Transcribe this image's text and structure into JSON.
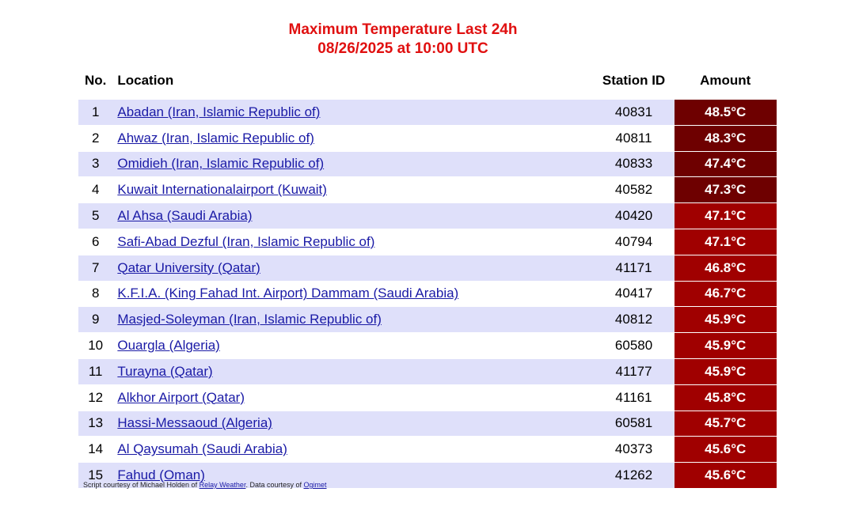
{
  "title": {
    "line1": "Maximum Temperature Last 24h",
    "line2": "08/26/2025 at 10:00 UTC"
  },
  "headers": {
    "no": "No.",
    "location": "Location",
    "station": "Station ID",
    "amount": "Amount"
  },
  "colors": {
    "extreme": "#6e0000",
    "high": "#a00000",
    "stripe": "#dfe0fa",
    "title": "#e01010"
  },
  "rows": [
    {
      "no": "1",
      "location": "Abadan (Iran, Islamic Republic of)",
      "station": "40831",
      "amount": "48.5°C",
      "level": "extreme"
    },
    {
      "no": "2",
      "location": "Ahwaz (Iran, Islamic Republic of)",
      "station": "40811",
      "amount": "48.3°C",
      "level": "extreme"
    },
    {
      "no": "3",
      "location": "Omidieh (Iran, Islamic Republic of)",
      "station": "40833",
      "amount": "47.4°C",
      "level": "extreme"
    },
    {
      "no": "4",
      "location": "Kuwait Internationalairport (Kuwait)",
      "station": "40582",
      "amount": "47.3°C",
      "level": "extreme"
    },
    {
      "no": "5",
      "location": "Al Ahsa (Saudi Arabia)",
      "station": "40420",
      "amount": "47.1°C",
      "level": "high"
    },
    {
      "no": "6",
      "location": "Safi-Abad Dezful (Iran, Islamic Republic of)",
      "station": "40794",
      "amount": "47.1°C",
      "level": "high"
    },
    {
      "no": "7",
      "location": "Qatar University (Qatar)",
      "station": "41171",
      "amount": "46.8°C",
      "level": "high"
    },
    {
      "no": "8",
      "location": "K.F.I.A. (King Fahad Int. Airport) Dammam (Saudi Arabia)",
      "station": "40417",
      "amount": "46.7°C",
      "level": "high"
    },
    {
      "no": "9",
      "location": "Masjed-Soleyman (Iran, Islamic Republic of)",
      "station": "40812",
      "amount": "45.9°C",
      "level": "high"
    },
    {
      "no": "10",
      "location": "Ouargla (Algeria)",
      "station": "60580",
      "amount": "45.9°C",
      "level": "high"
    },
    {
      "no": "11",
      "location": "Turayna (Qatar)",
      "station": "41177",
      "amount": "45.9°C",
      "level": "high"
    },
    {
      "no": "12",
      "location": "Alkhor Airport (Qatar)",
      "station": "41161",
      "amount": "45.8°C",
      "level": "high"
    },
    {
      "no": "13",
      "location": "Hassi-Messaoud (Algeria)",
      "station": "60581",
      "amount": "45.7°C",
      "level": "high"
    },
    {
      "no": "14",
      "location": "Al Qaysumah (Saudi Arabia)",
      "station": "40373",
      "amount": "45.6°C",
      "level": "high"
    },
    {
      "no": "15",
      "location": "Fahud (Oman)",
      "station": "41262",
      "amount": "45.6°C",
      "level": "high"
    }
  ],
  "footer": {
    "prefix": "Script courtesy of  Michael Holden of ",
    "link1": "Relay Weather",
    "middle": ". Data courtesy of ",
    "link2": "Ogimet"
  }
}
